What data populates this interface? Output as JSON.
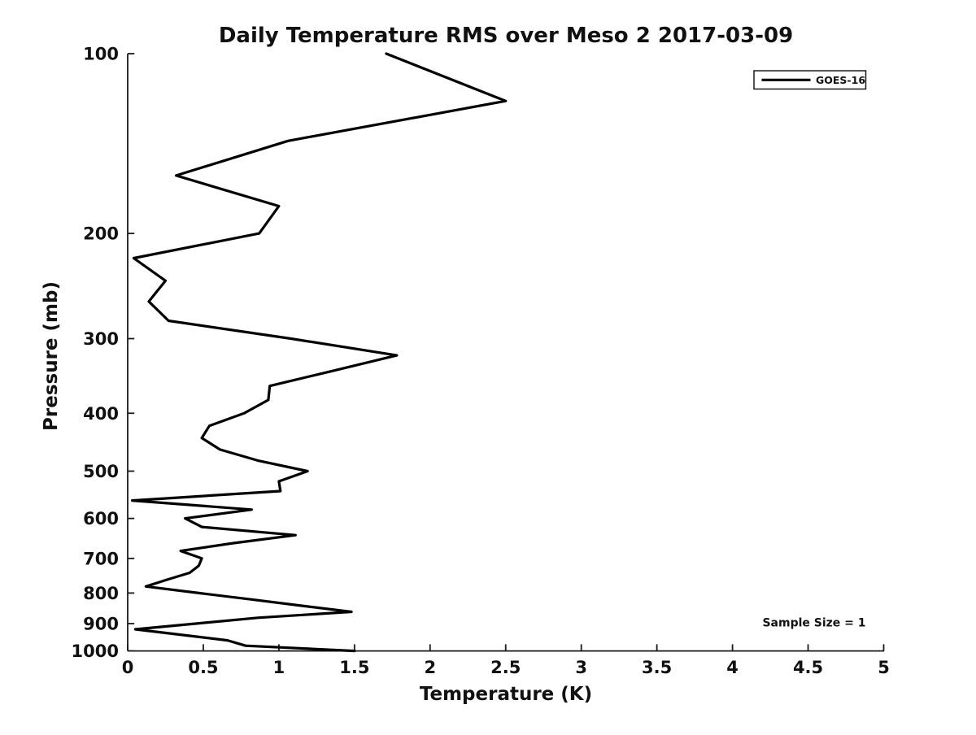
{
  "chart_data": {
    "type": "line",
    "title": "Daily Temperature RMS over Meso 2 2017-03-09",
    "xlabel": "Temperature (K)",
    "ylabel": "Pressure (mb)",
    "xlim": [
      0,
      5
    ],
    "ylim": [
      100,
      1000
    ],
    "yscale": "log",
    "y_inverted": true,
    "grid": false,
    "legend_position": "upper right",
    "xticks": [
      0,
      0.5,
      1,
      1.5,
      2,
      2.5,
      3,
      3.5,
      4,
      4.5,
      5
    ],
    "xtick_labels": [
      "0",
      "0.5",
      "1",
      "1.5",
      "2",
      "2.5",
      "3",
      "3.5",
      "4",
      "4.5",
      "5"
    ],
    "yticks": [
      100,
      200,
      300,
      400,
      500,
      600,
      700,
      800,
      900,
      1000
    ],
    "ytick_labels": [
      "100",
      "200",
      "300",
      "400",
      "500",
      "600",
      "700",
      "800",
      "900",
      "1000"
    ],
    "series": [
      {
        "name": "GOES-16",
        "color": "#000000",
        "pressure_mb": [
          100,
          120,
          140,
          160,
          180,
          200,
          220,
          240,
          260,
          280,
          300,
          320,
          340,
          360,
          380,
          400,
          420,
          440,
          460,
          480,
          500,
          520,
          540,
          560,
          580,
          600,
          620,
          640,
          660,
          680,
          700,
          720,
          740,
          760,
          780,
          800,
          820,
          840,
          860,
          880,
          900,
          920,
          940,
          960,
          980,
          1000
        ],
        "temperature_k": [
          1.71,
          2.5,
          1.06,
          0.32,
          1.0,
          0.87,
          0.04,
          0.25,
          0.14,
          0.27,
          1.08,
          1.78,
          1.35,
          0.94,
          0.93,
          0.77,
          0.54,
          0.49,
          0.61,
          0.86,
          1.19,
          1.0,
          1.01,
          0.03,
          0.82,
          0.38,
          0.49,
          1.11,
          0.7,
          0.35,
          0.49,
          0.47,
          0.41,
          0.26,
          0.12,
          0.47,
          0.82,
          1.15,
          1.48,
          0.86,
          0.45,
          0.05,
          0.36,
          0.66,
          0.78,
          1.5
        ]
      }
    ],
    "annotations": [
      {
        "text": "Sample Size = 1",
        "position": "lower right"
      }
    ]
  },
  "colors": {
    "line": "#000000",
    "axis": "#1a1a1a",
    "background": "#ffffff"
  }
}
